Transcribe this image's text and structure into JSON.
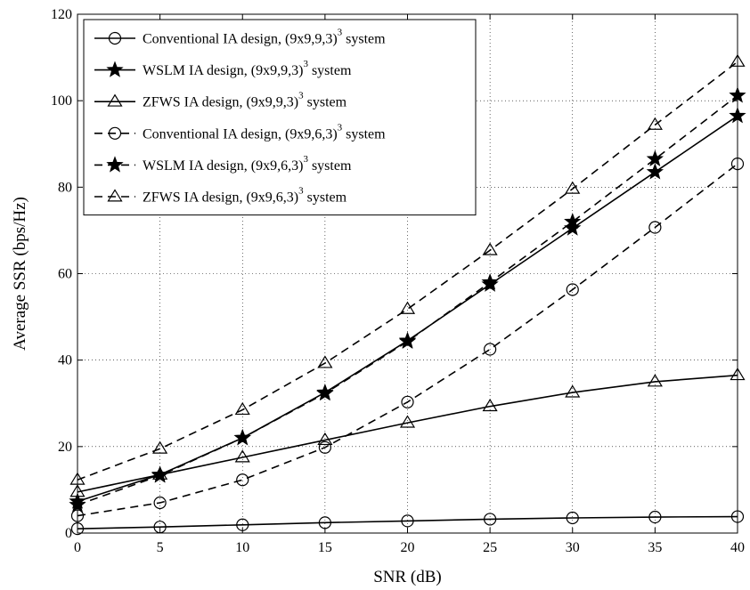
{
  "chart_data": {
    "type": "line",
    "xlabel": "SNR (dB)",
    "ylabel": "Average SSR (bps/Hz)",
    "xlim": [
      0,
      40
    ],
    "ylim": [
      0,
      120
    ],
    "xticks": [
      0,
      5,
      10,
      15,
      20,
      25,
      30,
      35,
      40
    ],
    "yticks": [
      0,
      20,
      40,
      60,
      80,
      100,
      120
    ],
    "x": [
      0,
      5,
      10,
      15,
      20,
      25,
      30,
      35,
      40
    ],
    "grid": true,
    "legend_position": "top-left",
    "series": [
      {
        "name": "Conventional IA design, (9x9,9,3)",
        "name_sup": "3",
        "name_suffix": " system",
        "marker": "circle",
        "line": "solid",
        "values": [
          1.0,
          1.4,
          1.9,
          2.4,
          2.8,
          3.2,
          3.5,
          3.7,
          3.8
        ]
      },
      {
        "name": "WSLM IA design, (9x9,9,3)",
        "name_sup": "3",
        "name_suffix": " system",
        "marker": "star",
        "line": "solid",
        "values": [
          7.3,
          13.5,
          22.0,
          32.5,
          44.5,
          57.5,
          70.5,
          83.5,
          96.5
        ]
      },
      {
        "name": "ZFWS IA design, (9x9,9,3)",
        "name_sup": "3",
        "name_suffix": " system",
        "marker": "triangle",
        "line": "solid",
        "values": [
          9.5,
          13.5,
          17.5,
          21.5,
          25.5,
          29.3,
          32.5,
          35.0,
          36.5
        ]
      },
      {
        "name": "Conventional IA design, (9x9,6,3)",
        "name_sup": "3",
        "name_suffix": " system",
        "marker": "circle",
        "line": "dashed",
        "values": [
          4.0,
          7.0,
          12.3,
          19.8,
          30.3,
          42.5,
          56.3,
          70.7,
          85.4
        ]
      },
      {
        "name": "WSLM IA design, (9x9,6,3)",
        "name_sup": "3",
        "name_suffix": " system",
        "marker": "star",
        "line": "dashed",
        "values": [
          6.5,
          13.3,
          22.0,
          32.3,
          44.3,
          58.0,
          72.0,
          86.5,
          101.2
        ]
      },
      {
        "name": "ZFWS IA design, (9x9,6,3)",
        "name_sup": "3",
        "name_suffix": " system",
        "marker": "triangle",
        "line": "dashed",
        "values": [
          12.3,
          19.5,
          28.5,
          39.3,
          51.8,
          65.4,
          79.6,
          94.4,
          109.0
        ]
      }
    ]
  }
}
